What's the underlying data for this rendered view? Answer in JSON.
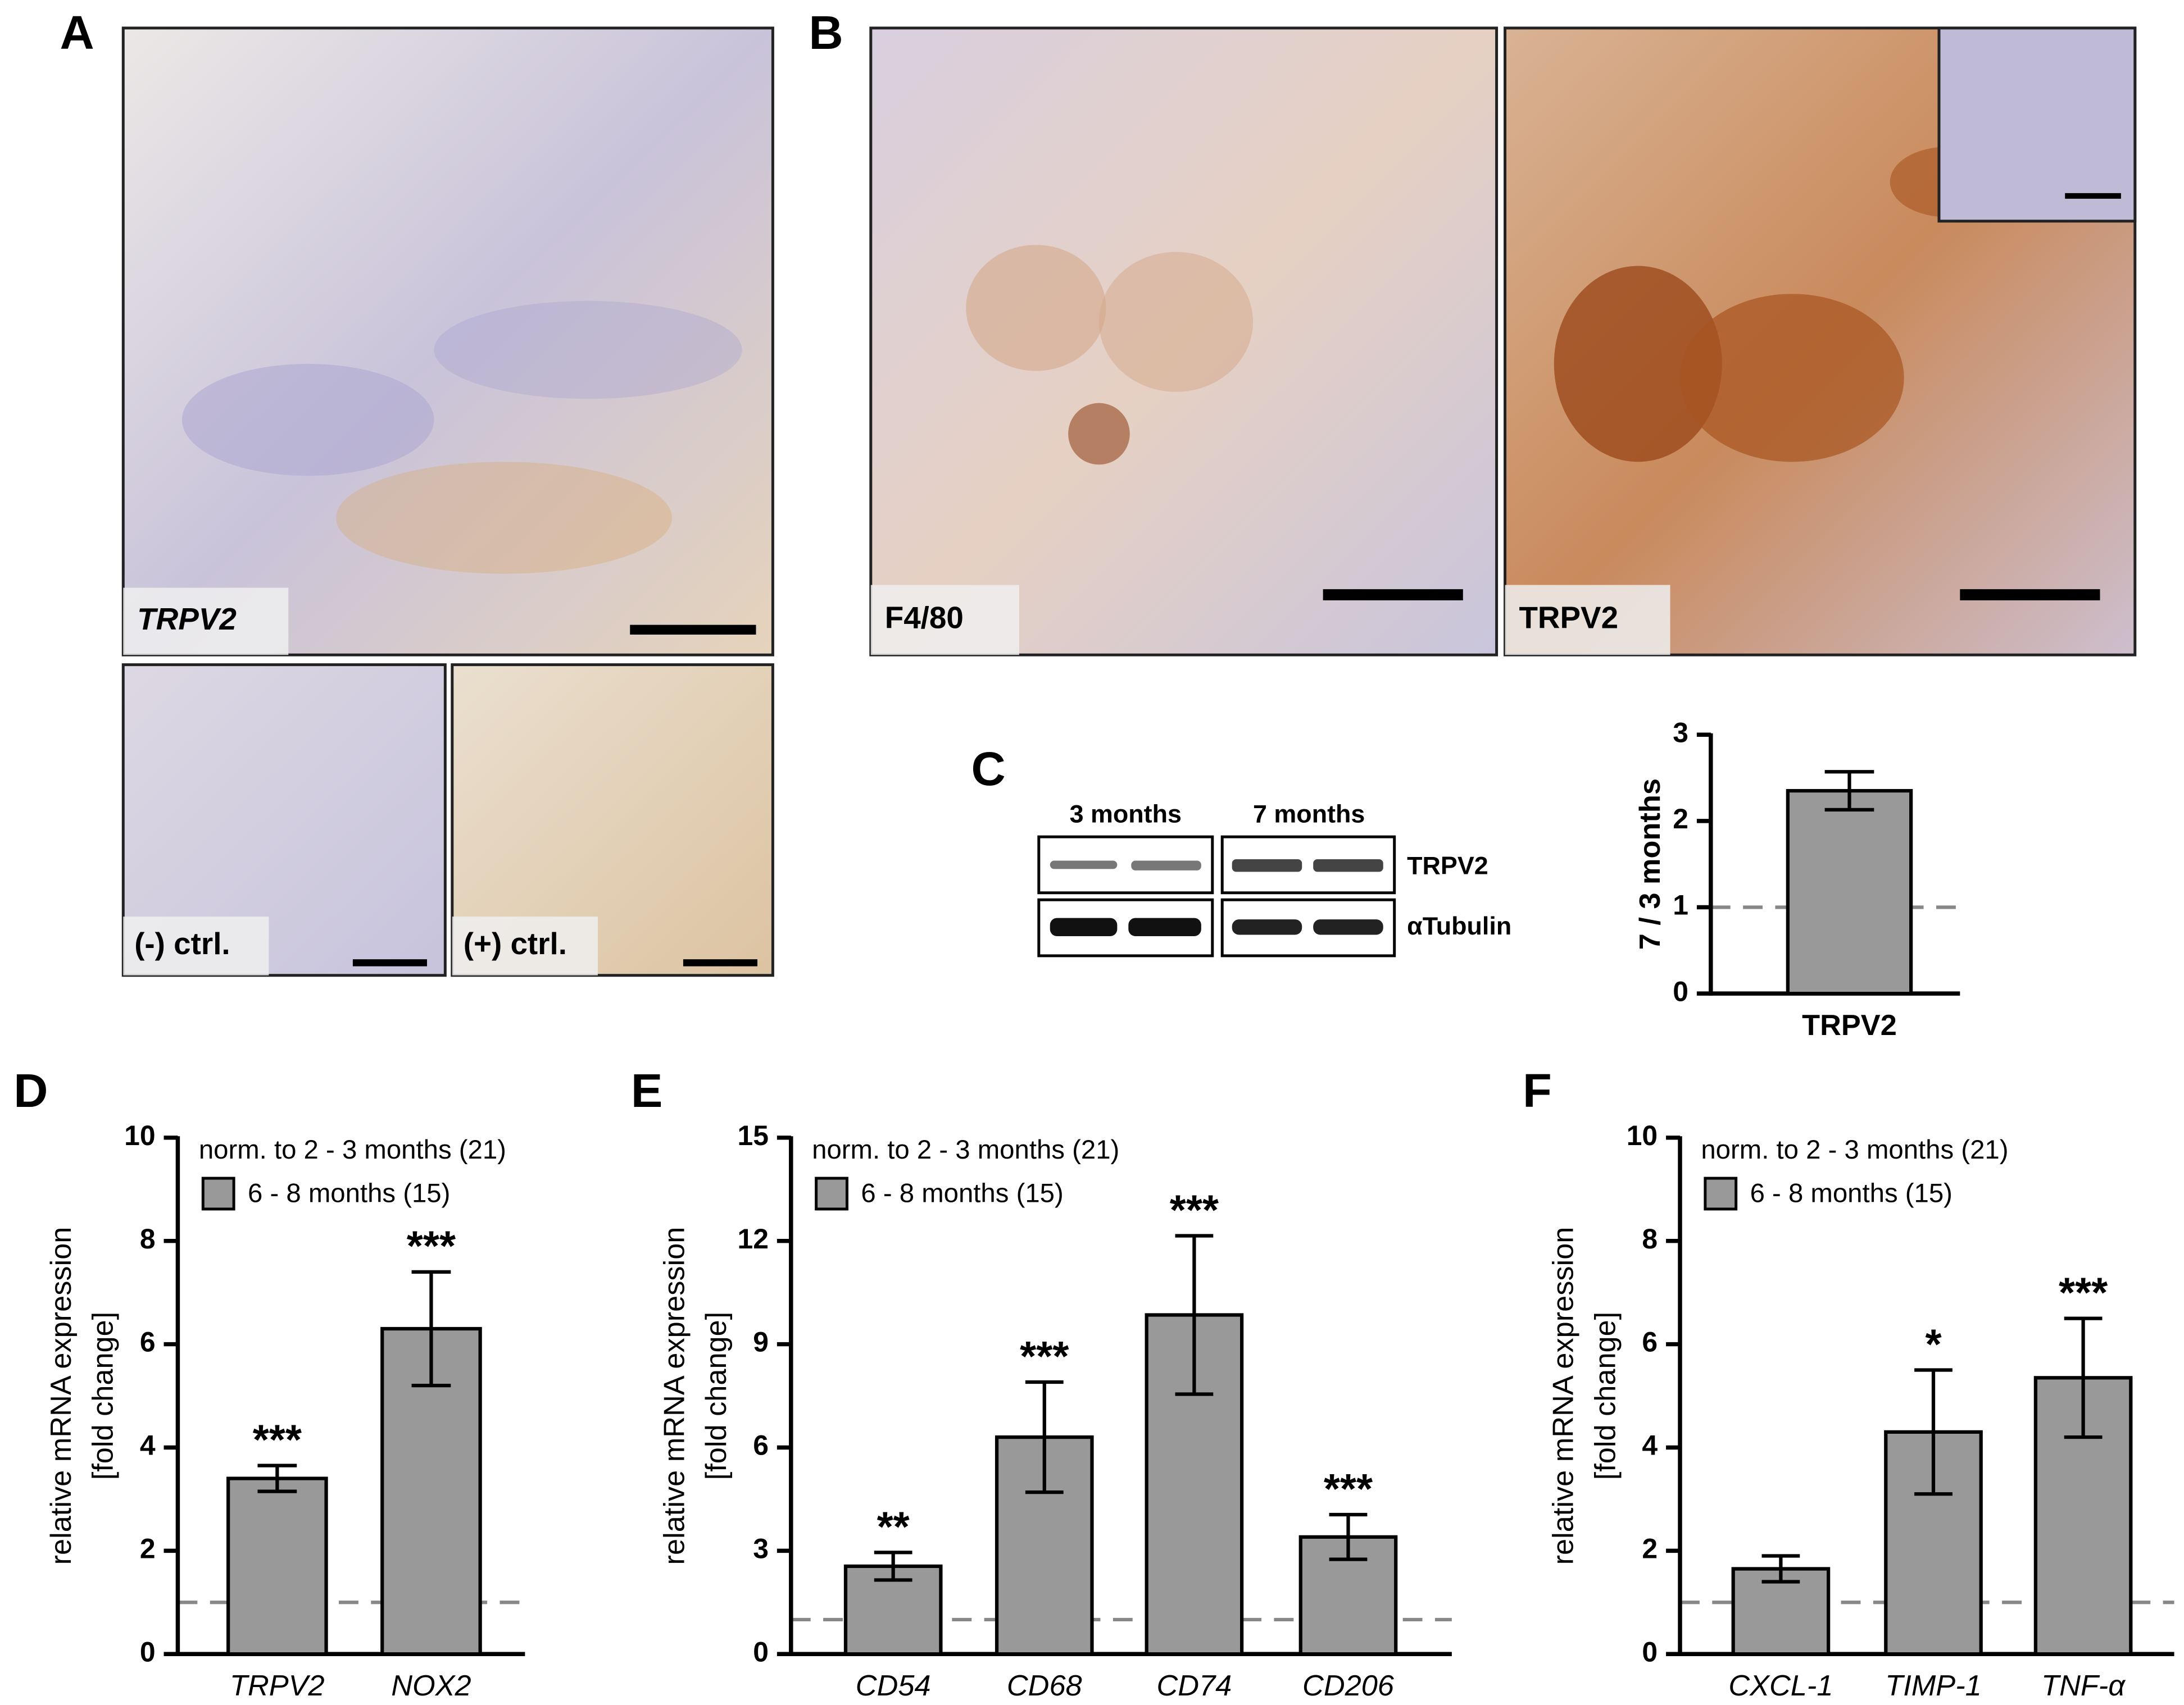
{
  "panel_labels": [
    "A",
    "B",
    "C",
    "D",
    "E",
    "F"
  ],
  "micrographs": {
    "a_main": "TRPV2",
    "a_neg": "(-) ctrl.",
    "a_pos": "(+) ctrl.",
    "b_left": "F4/80",
    "b_right": "TRPV2"
  },
  "western_blot": {
    "lanes": [
      "3 months",
      "7 months"
    ],
    "rows": [
      "TRPV2",
      "αTubulin"
    ]
  },
  "chart_data": [
    {
      "type": "bar",
      "y_label": [
        "7 / 3 months"
      ],
      "categories": [
        "TRPV2"
      ],
      "values": [
        2.35
      ],
      "errors": [
        0.22
      ],
      "color": "#999999",
      "ylim": [
        0,
        3
      ],
      "yticks": [
        0,
        1,
        2,
        3
      ],
      "reference_line": 1
    },
    {
      "type": "bar",
      "y_label": [
        "relative mRNA expression",
        "[fold change]"
      ],
      "note": "norm. to 2 - 3 months (21)",
      "categories": [
        "TRPV2",
        "NOX2"
      ],
      "series": [
        {
          "name": "6 - 8 months (15)",
          "color": "#999999",
          "values": [
            3.4,
            6.3
          ],
          "errors": [
            0.25,
            1.1
          ]
        }
      ],
      "annotations": [
        "***",
        "***"
      ],
      "ylim": [
        0,
        10
      ],
      "yticks": [
        0,
        2,
        4,
        6,
        8,
        10
      ],
      "reference_line": 1
    },
    {
      "type": "bar",
      "y_label": [
        "relative mRNA expression",
        "[fold change]"
      ],
      "note": "norm. to 2 - 3 months (21)",
      "categories": [
        "CD54",
        "CD68",
        "CD74",
        "CD206"
      ],
      "series": [
        {
          "name": "6 - 8 months (15)",
          "color": "#999999",
          "values": [
            2.55,
            6.3,
            9.85,
            3.4
          ],
          "errors": [
            0.4,
            1.6,
            2.3,
            0.65
          ]
        }
      ],
      "annotations": [
        "**",
        "***",
        "***",
        "***"
      ],
      "ylim": [
        0,
        15
      ],
      "yticks": [
        0,
        3,
        6,
        9,
        12,
        15
      ],
      "reference_line": 1
    },
    {
      "type": "bar",
      "y_label": [
        "relative mRNA expression",
        "[fold change]"
      ],
      "note": "norm. to 2 - 3 months (21)",
      "categories": [
        "CXCL-1",
        "TIMP-1",
        "TNF-α"
      ],
      "series": [
        {
          "name": "6 - 8 months (15)",
          "color": "#999999",
          "values": [
            1.65,
            4.3,
            5.35
          ],
          "errors": [
            0.25,
            1.2,
            1.15
          ]
        }
      ],
      "annotations": [
        null,
        "*",
        "***"
      ],
      "ylim": [
        0,
        10
      ],
      "yticks": [
        0,
        2,
        4,
        6,
        8,
        10
      ],
      "reference_line": 1
    }
  ]
}
